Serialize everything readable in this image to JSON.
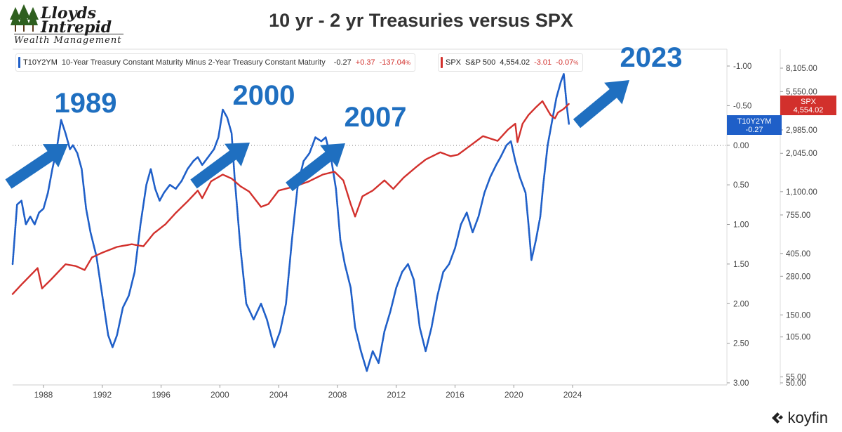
{
  "logo": {
    "line1": "Lloyds",
    "line2": "Intrepid",
    "line3": "Wealth Management",
    "icon": "trees-icon"
  },
  "title": "10 yr - 2 yr Treasuries versus SPX",
  "legend": {
    "t10": {
      "ticker": "T10Y2YM",
      "description": "10-Year Treasury Constant Maturity Minus 2-Year Treasury Constant Maturity",
      "last": "-0.27",
      "change": "+0.37",
      "pct": "-137.04",
      "pct_suffix": "%",
      "color": "#1f5fc8"
    },
    "spx": {
      "ticker": "SPX",
      "description": "S&P 500",
      "last": "4,554.02",
      "change": "-3.01",
      "pct": "-0.07",
      "pct_suffix": "%",
      "color": "#d2302c"
    }
  },
  "badges": {
    "spx": {
      "line1": "SPX",
      "line2": "4,554.02"
    },
    "t10": {
      "line1": "T10Y2YM",
      "line2": "-0.27"
    }
  },
  "annotations": [
    "1989",
    "2000",
    "2007",
    "2023"
  ],
  "footer": {
    "brand": "koyfin",
    "icon": "koyfin-logo-icon"
  },
  "chart_data": {
    "type": "line",
    "title": "10 yr - 2 yr Treasuries versus SPX",
    "x_ticks": [
      "1988",
      "1992",
      "1996",
      "2000",
      "2004",
      "2008",
      "2012",
      "2016",
      "2020",
      "2024"
    ],
    "xlim": [
      1985.9,
      2034.5
    ],
    "left_axis": {
      "note": "T10Y2YM inverted axis (top = -1.00, bottom = 3.00)",
      "ticks": [
        "-1.00",
        "-0.50",
        "0.00",
        "0.50",
        "1.00",
        "1.50",
        "2.00",
        "2.50",
        "3.00"
      ],
      "ylim": [
        -1.25,
        3.0
      ],
      "inverted": true
    },
    "right_axis": {
      "note": "SPX log axis",
      "ticks": [
        "8,105.00",
        "5,550.00",
        "2,985.00",
        "2,045.00",
        "1,100.00",
        "755.00",
        "405.00",
        "280.00",
        "150.00",
        "105.00",
        "55.00",
        "50.00"
      ],
      "log": true
    },
    "zero_line": 0.0,
    "series": [
      {
        "name": "T10Y2YM",
        "axis": "left",
        "color": "#1f5fc8",
        "points": [
          [
            1985.9,
            1.5
          ],
          [
            1986.2,
            0.75
          ],
          [
            1986.5,
            0.7
          ],
          [
            1986.8,
            1.0
          ],
          [
            1987.1,
            0.9
          ],
          [
            1987.4,
            1.0
          ],
          [
            1987.7,
            0.85
          ],
          [
            1988.0,
            0.8
          ],
          [
            1988.3,
            0.6
          ],
          [
            1988.6,
            0.3
          ],
          [
            1988.9,
            0.05
          ],
          [
            1989.2,
            -0.32
          ],
          [
            1989.5,
            -0.15
          ],
          [
            1989.8,
            0.05
          ],
          [
            1990.0,
            0.0
          ],
          [
            1990.3,
            0.1
          ],
          [
            1990.6,
            0.3
          ],
          [
            1990.9,
            0.8
          ],
          [
            1991.2,
            1.1
          ],
          [
            1991.6,
            1.4
          ],
          [
            1992.0,
            1.9
          ],
          [
            1992.4,
            2.4
          ],
          [
            1992.7,
            2.55
          ],
          [
            1993.0,
            2.4
          ],
          [
            1993.4,
            2.05
          ],
          [
            1993.8,
            1.9
          ],
          [
            1994.2,
            1.6
          ],
          [
            1994.6,
            1.0
          ],
          [
            1995.0,
            0.5
          ],
          [
            1995.3,
            0.3
          ],
          [
            1995.6,
            0.55
          ],
          [
            1995.9,
            0.7
          ],
          [
            1996.2,
            0.6
          ],
          [
            1996.6,
            0.5
          ],
          [
            1997.0,
            0.55
          ],
          [
            1997.4,
            0.45
          ],
          [
            1997.8,
            0.3
          ],
          [
            1998.2,
            0.2
          ],
          [
            1998.5,
            0.15
          ],
          [
            1998.8,
            0.25
          ],
          [
            1999.2,
            0.15
          ],
          [
            1999.6,
            0.05
          ],
          [
            1999.9,
            -0.1
          ],
          [
            2000.2,
            -0.45
          ],
          [
            2000.5,
            -0.35
          ],
          [
            2000.8,
            -0.15
          ],
          [
            2001.0,
            0.4
          ],
          [
            2001.4,
            1.3
          ],
          [
            2001.8,
            2.0
          ],
          [
            2002.3,
            2.2
          ],
          [
            2002.8,
            2.0
          ],
          [
            2003.2,
            2.2
          ],
          [
            2003.7,
            2.55
          ],
          [
            2004.1,
            2.35
          ],
          [
            2004.5,
            2.0
          ],
          [
            2004.9,
            1.2
          ],
          [
            2005.3,
            0.5
          ],
          [
            2005.7,
            0.2
          ],
          [
            2006.1,
            0.1
          ],
          [
            2006.5,
            -0.1
          ],
          [
            2006.9,
            -0.05
          ],
          [
            2007.2,
            -0.1
          ],
          [
            2007.6,
            0.2
          ],
          [
            2007.9,
            0.55
          ],
          [
            2008.2,
            1.2
          ],
          [
            2008.5,
            1.5
          ],
          [
            2008.9,
            1.8
          ],
          [
            2009.2,
            2.3
          ],
          [
            2009.6,
            2.6
          ],
          [
            2010.0,
            2.85
          ],
          [
            2010.4,
            2.6
          ],
          [
            2010.8,
            2.75
          ],
          [
            2011.2,
            2.35
          ],
          [
            2011.6,
            2.1
          ],
          [
            2012.0,
            1.8
          ],
          [
            2012.4,
            1.6
          ],
          [
            2012.8,
            1.5
          ],
          [
            2013.2,
            1.7
          ],
          [
            2013.6,
            2.3
          ],
          [
            2014.0,
            2.6
          ],
          [
            2014.4,
            2.3
          ],
          [
            2014.8,
            1.9
          ],
          [
            2015.2,
            1.6
          ],
          [
            2015.6,
            1.5
          ],
          [
            2016.0,
            1.3
          ],
          [
            2016.4,
            1.0
          ],
          [
            2016.8,
            0.85
          ],
          [
            2017.2,
            1.1
          ],
          [
            2017.6,
            0.9
          ],
          [
            2018.0,
            0.6
          ],
          [
            2018.4,
            0.4
          ],
          [
            2018.8,
            0.25
          ],
          [
            2019.1,
            0.15
          ],
          [
            2019.5,
            0.0
          ],
          [
            2019.8,
            -0.05
          ],
          [
            2020.1,
            0.2
          ],
          [
            2020.4,
            0.4
          ],
          [
            2020.8,
            0.6
          ],
          [
            2021.0,
            1.0
          ],
          [
            2021.2,
            1.45
          ],
          [
            2021.5,
            1.2
          ],
          [
            2021.8,
            0.9
          ],
          [
            2022.0,
            0.5
          ],
          [
            2022.3,
            0.0
          ],
          [
            2022.6,
            -0.3
          ],
          [
            2022.9,
            -0.6
          ],
          [
            2023.2,
            -0.8
          ],
          [
            2023.4,
            -0.9
          ],
          [
            2023.6,
            -0.5
          ],
          [
            2023.75,
            -0.27
          ]
        ]
      },
      {
        "name": "SPX",
        "axis": "right",
        "color": "#d2302c",
        "points": [
          [
            1985.9,
            210
          ],
          [
            1986.5,
            245
          ],
          [
            1987.6,
            320
          ],
          [
            1987.9,
            230
          ],
          [
            1988.5,
            265
          ],
          [
            1989.5,
            340
          ],
          [
            1990.2,
            330
          ],
          [
            1990.8,
            310
          ],
          [
            1991.3,
            380
          ],
          [
            1992.0,
            410
          ],
          [
            1993.0,
            450
          ],
          [
            1994.0,
            470
          ],
          [
            1994.8,
            455
          ],
          [
            1995.5,
            560
          ],
          [
            1996.3,
            650
          ],
          [
            1997.0,
            780
          ],
          [
            1997.8,
            940
          ],
          [
            1998.5,
            1120
          ],
          [
            1998.8,
            990
          ],
          [
            1999.4,
            1300
          ],
          [
            2000.2,
            1450
          ],
          [
            2000.8,
            1360
          ],
          [
            2001.4,
            1200
          ],
          [
            2002.0,
            1100
          ],
          [
            2002.8,
            860
          ],
          [
            2003.3,
            900
          ],
          [
            2004.0,
            1120
          ],
          [
            2005.0,
            1190
          ],
          [
            2006.0,
            1290
          ],
          [
            2007.0,
            1450
          ],
          [
            2007.8,
            1520
          ],
          [
            2008.4,
            1320
          ],
          [
            2008.9,
            900
          ],
          [
            2009.2,
            735
          ],
          [
            2009.7,
            1020
          ],
          [
            2010.4,
            1120
          ],
          [
            2011.2,
            1320
          ],
          [
            2011.8,
            1150
          ],
          [
            2012.5,
            1380
          ],
          [
            2013.3,
            1620
          ],
          [
            2014.0,
            1850
          ],
          [
            2015.0,
            2080
          ],
          [
            2015.7,
            1950
          ],
          [
            2016.2,
            2000
          ],
          [
            2017.0,
            2300
          ],
          [
            2017.9,
            2700
          ],
          [
            2018.9,
            2500
          ],
          [
            2019.6,
            3000
          ],
          [
            2020.1,
            3300
          ],
          [
            2020.25,
            2450
          ],
          [
            2020.6,
            3300
          ],
          [
            2021.0,
            3800
          ],
          [
            2021.5,
            4300
          ],
          [
            2021.95,
            4750
          ],
          [
            2022.5,
            3800
          ],
          [
            2022.8,
            3600
          ],
          [
            2023.0,
            3950
          ],
          [
            2023.4,
            4200
          ],
          [
            2023.75,
            4554
          ]
        ]
      }
    ]
  }
}
